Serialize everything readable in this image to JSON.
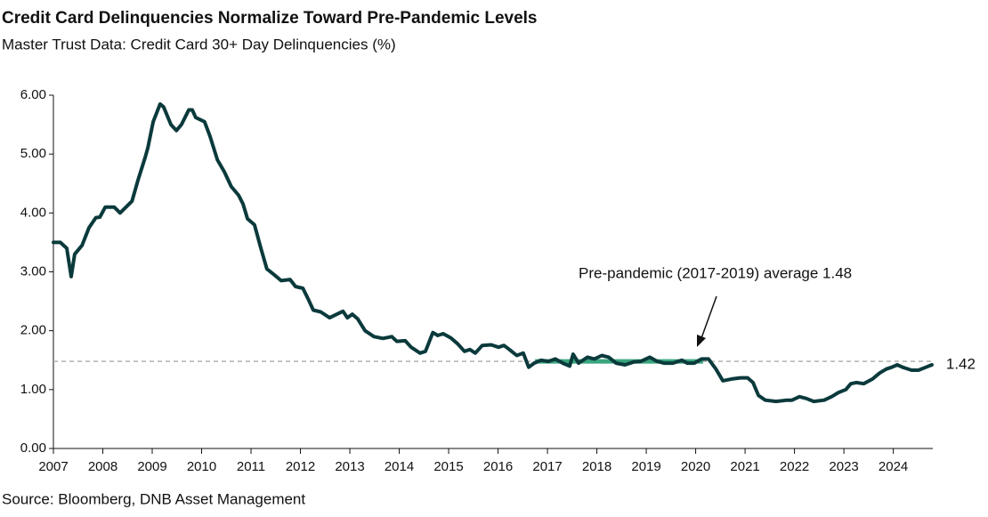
{
  "chart_data": {
    "type": "line",
    "title": "Credit Card Delinquencies Normalize Toward Pre-Pandemic Levels",
    "subtitle": "Master Trust Data: Credit Card 30+ Day Delinquencies (%)",
    "source": "Source: Bloomberg, DNB Asset Management",
    "annotation": "Pre-pandemic (2017-2019) average 1.48",
    "average": 1.48,
    "average_span": [
      2016.75,
      2020.15
    ],
    "average_color": "#3aa57e",
    "color": "#0b3a3c",
    "xlim": [
      2007,
      2024.8
    ],
    "xticks": [
      2007,
      2008,
      2009,
      2010,
      2011,
      2012,
      2013,
      2014,
      2015,
      2016,
      2017,
      2018,
      2019,
      2020,
      2021,
      2022,
      2023,
      2024
    ],
    "ylim": [
      0,
      6
    ],
    "yticks": [
      {
        "value": 0,
        "label": "0.00"
      },
      {
        "value": 1,
        "label": "1.00"
      },
      {
        "value": 2,
        "label": "2.00"
      },
      {
        "value": 3,
        "label": "3.00"
      },
      {
        "value": 4,
        "label": "4.00"
      },
      {
        "value": 5,
        "label": "5.00"
      },
      {
        "value": 6,
        "label": "6.00"
      }
    ],
    "x": [
      2007.0,
      2007.14,
      2007.27,
      2007.36,
      2007.43,
      2007.58,
      2007.72,
      2007.86,
      2007.94,
      2008.05,
      2008.23,
      2008.35,
      2008.59,
      2008.71,
      2008.86,
      2008.91,
      2009.02,
      2009.16,
      2009.23,
      2009.38,
      2009.49,
      2009.59,
      2009.74,
      2009.81,
      2009.88,
      2010.06,
      2010.17,
      2010.32,
      2010.46,
      2010.6,
      2010.75,
      2010.84,
      2010.93,
      2011.07,
      2011.2,
      2011.32,
      2011.47,
      2011.61,
      2011.79,
      2011.9,
      2012.05,
      2012.15,
      2012.26,
      2012.41,
      2012.59,
      2012.86,
      2012.95,
      2013.05,
      2013.16,
      2013.31,
      2013.49,
      2013.67,
      2013.85,
      2013.95,
      2014.12,
      2014.24,
      2014.42,
      2014.53,
      2014.68,
      2014.78,
      2014.89,
      2015.04,
      2015.18,
      2015.32,
      2015.43,
      2015.54,
      2015.68,
      2015.86,
      2016.01,
      2016.12,
      2016.23,
      2016.38,
      2016.51,
      2016.62,
      2016.73,
      2016.87,
      2017.02,
      2017.16,
      2017.31,
      2017.45,
      2017.52,
      2017.63,
      2017.81,
      2017.95,
      2018.1,
      2018.24,
      2018.39,
      2018.57,
      2018.75,
      2018.89,
      2019.07,
      2019.22,
      2019.36,
      2019.54,
      2019.72,
      2019.83,
      2019.97,
      2020.12,
      2020.26,
      2020.41,
      2020.55,
      2020.73,
      2020.91,
      2021.05,
      2021.16,
      2021.27,
      2021.41,
      2021.63,
      2021.85,
      2021.95,
      2022.1,
      2022.24,
      2022.39,
      2022.6,
      2022.75,
      2022.89,
      2023.04,
      2023.14,
      2023.25,
      2023.4,
      2023.58,
      2023.72,
      2023.86,
      2023.97,
      2024.08,
      2024.19,
      2024.37,
      2024.51,
      2024.66,
      2024.78
    ],
    "values": [
      3.5,
      3.5,
      3.4,
      2.92,
      3.3,
      3.45,
      3.75,
      3.92,
      3.93,
      4.1,
      4.1,
      4.0,
      4.2,
      4.55,
      4.95,
      5.1,
      5.55,
      5.85,
      5.8,
      5.5,
      5.4,
      5.5,
      5.75,
      5.75,
      5.62,
      5.55,
      5.3,
      4.9,
      4.7,
      4.45,
      4.3,
      4.15,
      3.9,
      3.8,
      3.4,
      3.05,
      2.95,
      2.85,
      2.87,
      2.75,
      2.72,
      2.55,
      2.35,
      2.32,
      2.22,
      2.33,
      2.22,
      2.28,
      2.2,
      2.0,
      1.9,
      1.87,
      1.9,
      1.82,
      1.83,
      1.72,
      1.62,
      1.65,
      1.97,
      1.92,
      1.95,
      1.88,
      1.78,
      1.65,
      1.68,
      1.62,
      1.75,
      1.76,
      1.72,
      1.75,
      1.68,
      1.58,
      1.62,
      1.38,
      1.45,
      1.5,
      1.48,
      1.52,
      1.45,
      1.4,
      1.6,
      1.45,
      1.55,
      1.52,
      1.58,
      1.55,
      1.45,
      1.42,
      1.47,
      1.48,
      1.55,
      1.48,
      1.45,
      1.45,
      1.5,
      1.45,
      1.45,
      1.52,
      1.52,
      1.35,
      1.15,
      1.18,
      1.2,
      1.2,
      1.12,
      0.9,
      0.82,
      0.8,
      0.82,
      0.82,
      0.88,
      0.85,
      0.8,
      0.82,
      0.88,
      0.95,
      1.0,
      1.1,
      1.12,
      1.1,
      1.18,
      1.28,
      1.35,
      1.38,
      1.42,
      1.38,
      1.33,
      1.33,
      1.38,
      1.42
    ]
  }
}
